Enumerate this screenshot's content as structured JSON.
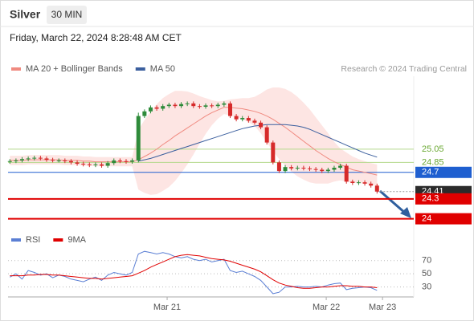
{
  "header": {
    "symbol": "Silver",
    "interval": "30 MIN",
    "timestamp": "Friday, March 22, 2024 8:28:48 AM CET",
    "credit": "Research © 2024 Trading Central"
  },
  "chart_data": [
    {
      "type": "candlestick",
      "up_color": "#2e8b3a",
      "down_color": "#d62a2a",
      "xlim": [
        -0.3,
        66
      ],
      "ylim": [
        23.85,
        26.15
      ],
      "legend": "top-left",
      "open": [
        24.86,
        24.87,
        24.88,
        24.9,
        24.91,
        24.92,
        24.91,
        24.89,
        24.88,
        24.88,
        24.87,
        24.85,
        24.83,
        24.82,
        24.81,
        24.82,
        24.8,
        24.84,
        24.88,
        24.87,
        24.86,
        24.88,
        25.55,
        25.62,
        25.68,
        25.66,
        25.7,
        25.72,
        25.7,
        25.73,
        25.74,
        25.7,
        25.69,
        25.71,
        25.7,
        25.72,
        25.74,
        25.55,
        25.5,
        25.52,
        25.48,
        25.45,
        25.38,
        25.15,
        24.85,
        24.72,
        24.78,
        24.76,
        24.77,
        24.76,
        24.75,
        24.74,
        24.72,
        24.74,
        24.77,
        24.8,
        24.56,
        24.54,
        24.55,
        24.53,
        24.5
      ],
      "high": [
        24.9,
        24.91,
        24.93,
        24.94,
        24.95,
        24.95,
        24.94,
        24.92,
        24.91,
        24.91,
        24.9,
        24.88,
        24.86,
        24.85,
        24.85,
        24.85,
        24.87,
        24.91,
        24.91,
        24.9,
        24.91,
        25.6,
        25.65,
        25.71,
        25.71,
        25.73,
        25.75,
        25.75,
        25.76,
        25.77,
        25.77,
        25.73,
        25.74,
        25.74,
        25.75,
        25.77,
        25.77,
        25.58,
        25.55,
        25.55,
        25.51,
        25.48,
        25.41,
        25.18,
        24.88,
        24.81,
        24.81,
        24.8,
        24.8,
        24.79,
        24.78,
        24.77,
        24.77,
        24.8,
        24.83,
        24.83,
        24.59,
        24.58,
        24.58,
        24.56,
        24.53
      ],
      "low": [
        24.83,
        24.84,
        24.85,
        24.87,
        24.88,
        24.88,
        24.86,
        24.85,
        24.85,
        24.84,
        24.82,
        24.8,
        24.79,
        24.78,
        24.78,
        24.77,
        24.77,
        24.81,
        24.84,
        24.83,
        24.83,
        24.85,
        25.52,
        25.59,
        25.63,
        25.63,
        25.67,
        25.67,
        25.67,
        25.7,
        25.67,
        25.66,
        25.66,
        25.67,
        25.67,
        25.69,
        25.52,
        25.47,
        25.47,
        25.45,
        25.42,
        25.35,
        25.12,
        24.82,
        24.69,
        24.69,
        24.73,
        24.73,
        24.73,
        24.72,
        24.71,
        24.69,
        24.69,
        24.71,
        24.74,
        24.53,
        24.51,
        24.51,
        24.5,
        24.47,
        24.38
      ],
      "close": [
        24.87,
        24.88,
        24.9,
        24.91,
        24.92,
        24.91,
        24.89,
        24.88,
        24.88,
        24.87,
        24.85,
        24.83,
        24.82,
        24.81,
        24.82,
        24.8,
        24.84,
        24.88,
        24.87,
        24.86,
        24.88,
        25.55,
        25.62,
        25.68,
        25.66,
        25.7,
        25.72,
        25.7,
        25.73,
        25.74,
        25.7,
        25.69,
        25.71,
        25.7,
        25.72,
        25.74,
        25.55,
        25.5,
        25.52,
        25.48,
        25.45,
        25.38,
        25.15,
        24.85,
        24.72,
        24.78,
        24.76,
        24.77,
        24.76,
        24.75,
        24.74,
        24.72,
        24.74,
        24.77,
        24.8,
        24.56,
        24.54,
        24.55,
        24.53,
        24.5,
        24.41
      ],
      "overlays": [
        {
          "name": "MA 20 + Bollinger Bands",
          "color": "#f08a80",
          "band_color": "#fde0de",
          "values": [
            24.88,
            24.88,
            24.88,
            24.89,
            24.89,
            24.89,
            24.89,
            24.89,
            24.89,
            24.88,
            24.88,
            24.88,
            24.87,
            24.87,
            24.86,
            24.86,
            24.86,
            24.86,
            24.86,
            24.86,
            24.86,
            24.89,
            24.94,
            24.99,
            25.05,
            25.12,
            25.18,
            25.25,
            25.31,
            25.37,
            25.43,
            25.49,
            25.55,
            25.6,
            25.64,
            25.68,
            25.68,
            25.67,
            25.66,
            25.64,
            25.62,
            25.59,
            25.55,
            25.5,
            25.44,
            25.38,
            25.31,
            25.24,
            25.17,
            25.1,
            25.03,
            24.97,
            24.91,
            24.86,
            24.82,
            24.78,
            24.74,
            24.72,
            24.7,
            24.68,
            24.66
          ],
          "upper": [
            24.95,
            24.95,
            24.95,
            24.96,
            24.96,
            24.96,
            24.96,
            24.96,
            24.96,
            24.95,
            24.95,
            24.95,
            24.94,
            24.94,
            24.93,
            24.93,
            24.93,
            24.93,
            24.93,
            24.93,
            24.93,
            25.34,
            25.49,
            25.62,
            25.73,
            25.82,
            25.88,
            25.93,
            25.93,
            25.92,
            25.89,
            25.85,
            25.82,
            25.79,
            25.77,
            25.78,
            25.8,
            25.81,
            25.82,
            25.82,
            25.84,
            25.89,
            25.95,
            25.98,
            25.98,
            25.96,
            25.91,
            25.84,
            25.75,
            25.65,
            25.53,
            25.41,
            25.29,
            25.16,
            25.06,
            25.0,
            24.94,
            24.9,
            24.87,
            24.84,
            24.82
          ],
          "lower": [
            24.81,
            24.81,
            24.81,
            24.82,
            24.82,
            24.82,
            24.82,
            24.82,
            24.82,
            24.81,
            24.81,
            24.81,
            24.8,
            24.8,
            24.79,
            24.79,
            24.79,
            24.79,
            24.79,
            24.79,
            24.79,
            24.44,
            24.39,
            24.36,
            24.37,
            24.42,
            24.48,
            24.57,
            24.69,
            24.82,
            24.97,
            25.13,
            25.28,
            25.41,
            25.51,
            25.58,
            25.56,
            25.53,
            25.5,
            25.46,
            25.4,
            25.29,
            25.15,
            25.02,
            24.9,
            24.8,
            24.71,
            24.64,
            24.59,
            24.55,
            24.53,
            24.53,
            24.53,
            24.56,
            24.58,
            24.56,
            24.54,
            24.54,
            24.53,
            24.52,
            24.5
          ]
        },
        {
          "name": "MA 50",
          "color": "#3b5f9e",
          "values": [
            null,
            null,
            null,
            null,
            null,
            null,
            null,
            null,
            null,
            null,
            null,
            null,
            null,
            null,
            null,
            null,
            null,
            null,
            null,
            null,
            null,
            24.87,
            24.89,
            24.91,
            24.94,
            24.97,
            25.0,
            25.03,
            25.06,
            25.09,
            25.12,
            25.15,
            25.18,
            25.21,
            25.24,
            25.27,
            25.3,
            25.33,
            25.36,
            25.38,
            25.4,
            25.41,
            25.42,
            25.42,
            25.42,
            25.42,
            25.41,
            25.4,
            25.38,
            25.35,
            25.31,
            25.27,
            25.23,
            25.19,
            25.15,
            25.11,
            25.07,
            25.03,
            24.99,
            24.96,
            24.93
          ]
        }
      ],
      "levels": [
        {
          "value": 25.05,
          "color": "#b5d98c",
          "text_color": "#6aa832",
          "filled": false,
          "line": "solid"
        },
        {
          "value": 24.85,
          "color": "#b5d98c",
          "text_color": "#6aa832",
          "filled": false,
          "line": "solid"
        },
        {
          "value": 24.7,
          "color": "#1f5fd0",
          "text_color": "#ffffff",
          "filled": true,
          "line": "solid"
        },
        {
          "value": 24.41,
          "color": "#2b2b2b",
          "text_color": "#ffffff",
          "filled": true,
          "line": "dotted"
        },
        {
          "value": 24.3,
          "color": "#e00000",
          "text_color": "#ffffff",
          "filled": true,
          "line": "solid"
        },
        {
          "value": 24.0,
          "color": "#e00000",
          "text_color": "#ffffff",
          "filled": true,
          "line": "solid"
        }
      ]
    },
    {
      "type": "line",
      "xlim": [
        -0.3,
        66
      ],
      "ylim": [
        15,
        100
      ],
      "yticks": [
        30,
        50,
        70
      ],
      "grid": true,
      "legend": "top-left",
      "xticks": [
        {
          "value": 25.7,
          "label": "Mar 21"
        },
        {
          "value": 51.7,
          "label": "Mar 22"
        },
        {
          "value": 60.9,
          "label": "Mar 23"
        }
      ],
      "series": [
        {
          "name": "RSI",
          "color": "#5b7fd4",
          "values": [
            45,
            50,
            42,
            55,
            52,
            48,
            50,
            44,
            48,
            46,
            42,
            40,
            38,
            42,
            45,
            40,
            48,
            52,
            50,
            48,
            52,
            80,
            84,
            82,
            80,
            82,
            80,
            76,
            74,
            76,
            72,
            70,
            72,
            68,
            70,
            72,
            55,
            52,
            54,
            50,
            46,
            40,
            30,
            20,
            22,
            30,
            30,
            31,
            30,
            30,
            31,
            30,
            33,
            35,
            36,
            26,
            28,
            29,
            30,
            29,
            25
          ]
        },
        {
          "name": "9MA",
          "color": "#e00000",
          "values": [
            47,
            47,
            47,
            48,
            48,
            49,
            49,
            48,
            48,
            47,
            46,
            45,
            44,
            43,
            43,
            42,
            43,
            44,
            45,
            46,
            47,
            51,
            55,
            60,
            64,
            68,
            72,
            76,
            78,
            79,
            78,
            77,
            75,
            73,
            72,
            71,
            69,
            66,
            63,
            60,
            57,
            53,
            47,
            41,
            36,
            33,
            31,
            29,
            28,
            28,
            29,
            30,
            30,
            31,
            32,
            32,
            31,
            31,
            30,
            30,
            29
          ]
        }
      ]
    }
  ]
}
